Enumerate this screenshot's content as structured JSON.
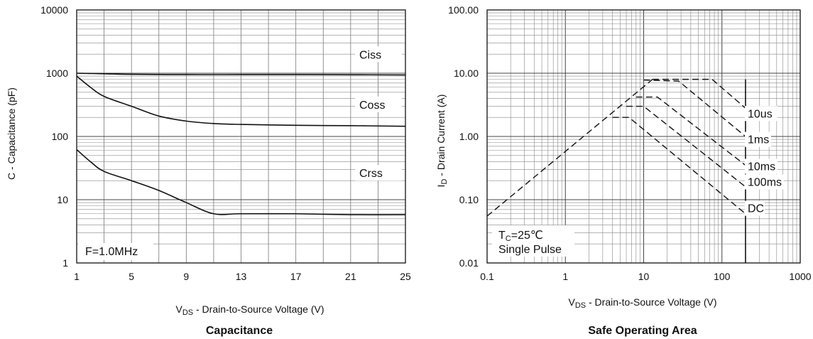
{
  "chart_data": [
    {
      "type": "line",
      "title": "Capacitance",
      "xlabel_main": "V",
      "xlabel_sub": "DS",
      "xlabel_rest": " - Drain-to-Source Voltage (V)",
      "ylabel": "C - Capacitance (pF)",
      "x_scale": "linear",
      "y_scale": "log",
      "xlim": [
        1,
        25
      ],
      "ylim": [
        1,
        10000
      ],
      "x_ticks": [
        "1",
        "5",
        "9",
        "13",
        "17",
        "21",
        "25"
      ],
      "y_ticks": [
        "1",
        "10",
        "100",
        "1000",
        "10000"
      ],
      "grid": true,
      "annotation": "F=1.0MHz",
      "series": [
        {
          "name": "Ciss",
          "x": [
            1,
            3,
            5,
            9,
            13,
            17,
            21,
            25
          ],
          "y": [
            1000,
            980,
            960,
            950,
            950,
            950,
            945,
            940
          ]
        },
        {
          "name": "Coss",
          "x": [
            1,
            2,
            3,
            5,
            7,
            9,
            11,
            13,
            17,
            21,
            25
          ],
          "y": [
            900,
            600,
            430,
            300,
            210,
            175,
            160,
            155,
            150,
            148,
            145
          ]
        },
        {
          "name": "Crss",
          "x": [
            1,
            2,
            3,
            5,
            7,
            9,
            11,
            13,
            17,
            21,
            25
          ],
          "y": [
            62,
            40,
            28,
            20,
            14,
            9,
            6,
            6,
            6,
            5.8,
            5.8
          ]
        }
      ]
    },
    {
      "type": "line",
      "title": "Safe Operating Area",
      "xlabel_main": "V",
      "xlabel_sub": "DS",
      "xlabel_rest": " - Drain-to-Source Voltage (V)",
      "ylabel_main": "I",
      "ylabel_sub": "D",
      "ylabel_rest": " - Drain Current (A)",
      "x_scale": "log",
      "y_scale": "log",
      "xlim": [
        0.1,
        1000
      ],
      "ylim": [
        0.01,
        100
      ],
      "x_ticks": [
        "0.1",
        "1",
        "10",
        "100",
        "1000"
      ],
      "y_ticks": [
        "0.01",
        "0.10",
        "1.00",
        "10.00",
        "100.00"
      ],
      "grid": true,
      "annotation_line1_main": "T",
      "annotation_line1_sub": "C",
      "annotation_line1_rest": "=25℃",
      "annotation_line2": "Single Pulse",
      "rds_limit_line": {
        "x": [
          0.1,
          13
        ],
        "y": [
          0.055,
          8
        ]
      },
      "vdss_limit": 200,
      "series": [
        {
          "name": "10us",
          "x": [
            13,
            75,
            200
          ],
          "y": [
            8,
            8,
            2.8
          ]
        },
        {
          "name": "1ms",
          "x": [
            10,
            28,
            200
          ],
          "y": [
            7.8,
            7.5,
            1.0
          ]
        },
        {
          "name": "10ms",
          "x": [
            8,
            15,
            200
          ],
          "y": [
            4.2,
            4.2,
            0.35
          ]
        },
        {
          "name": "100ms",
          "x": [
            6,
            10,
            200
          ],
          "y": [
            3.0,
            3.0,
            0.16
          ]
        },
        {
          "name": "DC",
          "x": [
            4,
            6.5,
            200
          ],
          "y": [
            2.0,
            2.0,
            0.06
          ]
        }
      ]
    }
  ]
}
